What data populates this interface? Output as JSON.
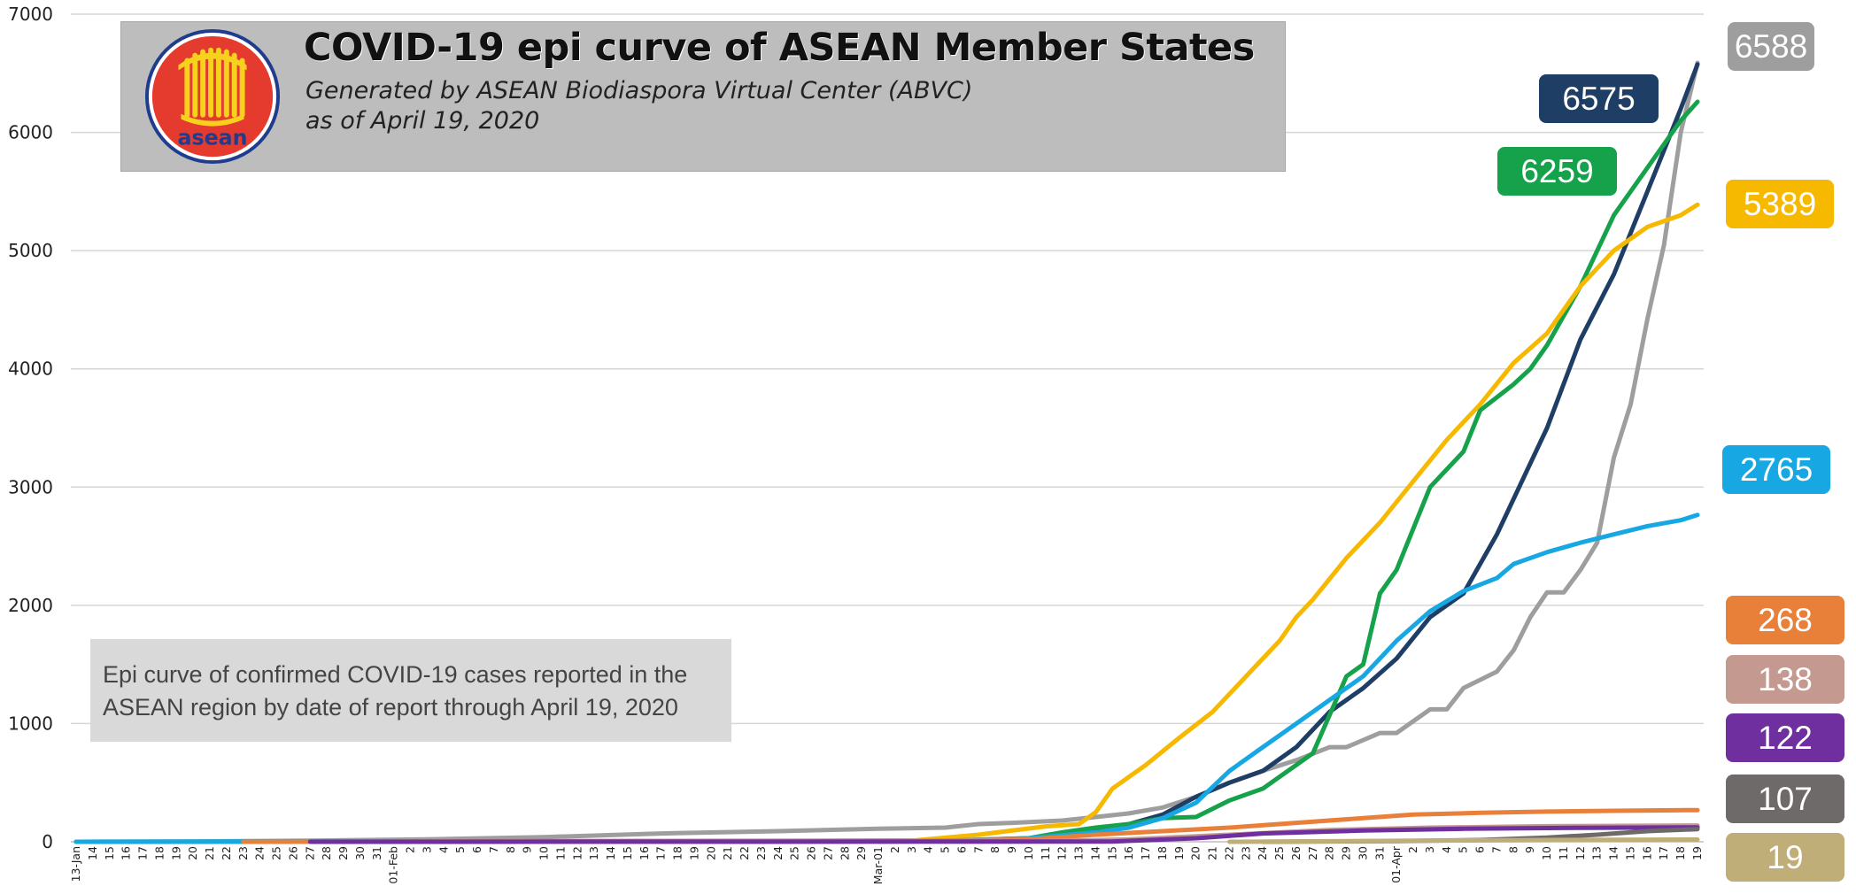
{
  "header": {
    "title": "COVID-19 epi curve of ASEAN Member States",
    "subtitle": "Generated by ASEAN Biodiaspora Virtual Center (ABVC)",
    "date_line": "as of April 19, 2020",
    "logo_text": "asean"
  },
  "note": {
    "line1": "Epi curve of confirmed COVID-19 cases reported in the",
    "line2": "ASEAN region by date of report  through April 19, 2020"
  },
  "chart_data": {
    "type": "line",
    "title": "COVID-19 epi curve of ASEAN Member States",
    "xlabel": "",
    "ylabel": "",
    "ylim": [
      0,
      7000
    ],
    "yticks": [
      0,
      1000,
      2000,
      3000,
      4000,
      5000,
      6000,
      7000
    ],
    "x_start": "2020-01-13",
    "x_end": "2020-04-19",
    "grid": true,
    "legend": "none",
    "end_labels": [
      {
        "text": "6588",
        "color": "#9e9e9e"
      },
      {
        "text": "6575",
        "color": "#1f3e66"
      },
      {
        "text": "6259",
        "color": "#16a24a"
      },
      {
        "text": "5389",
        "color": "#f7b800"
      },
      {
        "text": "2765",
        "color": "#17a8e3"
      },
      {
        "text": "268",
        "color": "#e8803a"
      },
      {
        "text": "138",
        "color": "#c49a90"
      },
      {
        "text": "122",
        "color": "#6f2f9f"
      },
      {
        "text": "107",
        "color": "#6e6a6a"
      },
      {
        "text": "19",
        "color": "#bfae78"
      }
    ],
    "series": [
      {
        "color": "#9e9e9e",
        "points": [
          [
            "2020-01-13",
            0
          ],
          [
            "2020-01-20",
            2
          ],
          [
            "2020-01-27",
            10
          ],
          [
            "2020-02-03",
            20
          ],
          [
            "2020-02-10",
            40
          ],
          [
            "2020-02-17",
            70
          ],
          [
            "2020-02-24",
            90
          ],
          [
            "2020-03-01",
            110
          ],
          [
            "2020-03-05",
            120
          ],
          [
            "2020-03-07",
            150
          ],
          [
            "2020-03-09",
            160
          ],
          [
            "2020-03-12",
            180
          ],
          [
            "2020-03-14",
            210
          ],
          [
            "2020-03-16",
            240
          ],
          [
            "2020-03-18",
            290
          ],
          [
            "2020-03-20",
            380
          ],
          [
            "2020-03-22",
            500
          ],
          [
            "2020-03-24",
            600
          ],
          [
            "2020-03-26",
            690
          ],
          [
            "2020-03-28",
            800
          ],
          [
            "2020-03-29",
            800
          ],
          [
            "2020-03-31",
            920
          ],
          [
            "2020-04-01",
            920
          ],
          [
            "2020-04-03",
            1120
          ],
          [
            "2020-04-04",
            1120
          ],
          [
            "2020-04-05",
            1300
          ],
          [
            "2020-04-07",
            1440
          ],
          [
            "2020-04-08",
            1620
          ],
          [
            "2020-04-09",
            1900
          ],
          [
            "2020-04-10",
            2110
          ],
          [
            "2020-04-11",
            2110
          ],
          [
            "2020-04-12",
            2300
          ],
          [
            "2020-04-13",
            2530
          ],
          [
            "2020-04-14",
            3250
          ],
          [
            "2020-04-15",
            3700
          ],
          [
            "2020-04-16",
            4420
          ],
          [
            "2020-04-17",
            5050
          ],
          [
            "2020-04-18",
            6000
          ],
          [
            "2020-04-19",
            6588
          ]
        ]
      },
      {
        "color": "#1f3e66",
        "points": [
          [
            "2020-03-01",
            2
          ],
          [
            "2020-03-05",
            5
          ],
          [
            "2020-03-08",
            10
          ],
          [
            "2020-03-10",
            20
          ],
          [
            "2020-03-12",
            50
          ],
          [
            "2020-03-14",
            100
          ],
          [
            "2020-03-16",
            150
          ],
          [
            "2020-03-18",
            230
          ],
          [
            "2020-03-20",
            380
          ],
          [
            "2020-03-22",
            500
          ],
          [
            "2020-03-24",
            600
          ],
          [
            "2020-03-26",
            800
          ],
          [
            "2020-03-28",
            1100
          ],
          [
            "2020-03-30",
            1300
          ],
          [
            "2020-04-01",
            1550
          ],
          [
            "2020-04-03",
            1900
          ],
          [
            "2020-04-05",
            2100
          ],
          [
            "2020-04-07",
            2600
          ],
          [
            "2020-04-09",
            3200
          ],
          [
            "2020-04-10",
            3500
          ],
          [
            "2020-04-12",
            4250
          ],
          [
            "2020-04-14",
            4800
          ],
          [
            "2020-04-16",
            5500
          ],
          [
            "2020-04-18",
            6200
          ],
          [
            "2020-04-19",
            6575
          ]
        ]
      },
      {
        "color": "#16a24a",
        "points": [
          [
            "2020-01-13",
            0
          ],
          [
            "2020-01-25",
            1
          ],
          [
            "2020-02-15",
            5
          ],
          [
            "2020-03-05",
            10
          ],
          [
            "2020-03-10",
            30
          ],
          [
            "2020-03-12",
            80
          ],
          [
            "2020-03-14",
            120
          ],
          [
            "2020-03-16",
            150
          ],
          [
            "2020-03-18",
            200
          ],
          [
            "2020-03-20",
            210
          ],
          [
            "2020-03-22",
            350
          ],
          [
            "2020-03-24",
            450
          ],
          [
            "2020-03-26",
            650
          ],
          [
            "2020-03-27",
            750
          ],
          [
            "2020-03-29",
            1400
          ],
          [
            "2020-03-30",
            1500
          ],
          [
            "2020-03-31",
            2100
          ],
          [
            "2020-04-01",
            2300
          ],
          [
            "2020-04-03",
            3000
          ],
          [
            "2020-04-05",
            3300
          ],
          [
            "2020-04-06",
            3650
          ],
          [
            "2020-04-08",
            3870
          ],
          [
            "2020-04-09",
            4000
          ],
          [
            "2020-04-10",
            4200
          ],
          [
            "2020-04-12",
            4700
          ],
          [
            "2020-04-14",
            5300
          ],
          [
            "2020-04-16",
            5700
          ],
          [
            "2020-04-18",
            6100
          ],
          [
            "2020-04-19",
            6259
          ]
        ]
      },
      {
        "color": "#f7b800",
        "points": [
          [
            "2020-01-26",
            0
          ],
          [
            "2020-01-28",
            2
          ],
          [
            "2020-02-28",
            2
          ],
          [
            "2020-03-03",
            10
          ],
          [
            "2020-03-07",
            60
          ],
          [
            "2020-03-11",
            130
          ],
          [
            "2020-03-13",
            150
          ],
          [
            "2020-03-14",
            250
          ],
          [
            "2020-03-15",
            450
          ],
          [
            "2020-03-17",
            650
          ],
          [
            "2020-03-19",
            880
          ],
          [
            "2020-03-21",
            1100
          ],
          [
            "2020-03-23",
            1400
          ],
          [
            "2020-03-25",
            1700
          ],
          [
            "2020-03-26",
            1900
          ],
          [
            "2020-03-27",
            2050
          ],
          [
            "2020-03-29",
            2400
          ],
          [
            "2020-03-31",
            2700
          ],
          [
            "2020-04-02",
            3050
          ],
          [
            "2020-04-04",
            3400
          ],
          [
            "2020-04-06",
            3700
          ],
          [
            "2020-04-08",
            4050
          ],
          [
            "2020-04-10",
            4300
          ],
          [
            "2020-04-12",
            4700
          ],
          [
            "2020-04-14",
            5000
          ],
          [
            "2020-04-16",
            5200
          ],
          [
            "2020-04-18",
            5300
          ],
          [
            "2020-04-19",
            5389
          ]
        ]
      },
      {
        "color": "#17a8e3",
        "points": [
          [
            "2020-01-13",
            0
          ],
          [
            "2020-01-25",
            3
          ],
          [
            "2020-02-15",
            5
          ],
          [
            "2020-03-05",
            8
          ],
          [
            "2020-03-10",
            30
          ],
          [
            "2020-03-14",
            80
          ],
          [
            "2020-03-16",
            120
          ],
          [
            "2020-03-18",
            200
          ],
          [
            "2020-03-20",
            330
          ],
          [
            "2020-03-22",
            600
          ],
          [
            "2020-03-24",
            800
          ],
          [
            "2020-03-26",
            1000
          ],
          [
            "2020-03-28",
            1200
          ],
          [
            "2020-03-30",
            1400
          ],
          [
            "2020-04-01",
            1700
          ],
          [
            "2020-04-03",
            1950
          ],
          [
            "2020-04-05",
            2120
          ],
          [
            "2020-04-07",
            2230
          ],
          [
            "2020-04-08",
            2350
          ],
          [
            "2020-04-10",
            2450
          ],
          [
            "2020-04-12",
            2530
          ],
          [
            "2020-04-14",
            2600
          ],
          [
            "2020-04-16",
            2670
          ],
          [
            "2020-04-18",
            2720
          ],
          [
            "2020-04-19",
            2765
          ]
        ]
      },
      {
        "color": "#e8803a",
        "points": [
          [
            "2020-01-23",
            0
          ],
          [
            "2020-01-30",
            2
          ],
          [
            "2020-03-01",
            3
          ],
          [
            "2020-03-10",
            20
          ],
          [
            "2020-03-14",
            60
          ],
          [
            "2020-03-18",
            90
          ],
          [
            "2020-03-22",
            120
          ],
          [
            "2020-03-26",
            160
          ],
          [
            "2020-03-30",
            200
          ],
          [
            "2020-04-02",
            230
          ],
          [
            "2020-04-06",
            245
          ],
          [
            "2020-04-10",
            255
          ],
          [
            "2020-04-14",
            262
          ],
          [
            "2020-04-19",
            268
          ]
        ]
      },
      {
        "color": "#c49a90",
        "points": [
          [
            "2020-01-30",
            0
          ],
          [
            "2020-03-10",
            2
          ],
          [
            "2020-03-16",
            20
          ],
          [
            "2020-03-22",
            60
          ],
          [
            "2020-03-28",
            100
          ],
          [
            "2020-04-03",
            120
          ],
          [
            "2020-04-10",
            132
          ],
          [
            "2020-04-19",
            138
          ]
        ]
      },
      {
        "color": "#6f2f9f",
        "points": [
          [
            "2020-01-27",
            0
          ],
          [
            "2020-03-15",
            2
          ],
          [
            "2020-03-20",
            30
          ],
          [
            "2020-03-24",
            70
          ],
          [
            "2020-03-30",
            95
          ],
          [
            "2020-04-05",
            110
          ],
          [
            "2020-04-12",
            118
          ],
          [
            "2020-04-19",
            122
          ]
        ]
      },
      {
        "color": "#6e6a6a",
        "points": [
          [
            "2020-03-24",
            0
          ],
          [
            "2020-04-01",
            5
          ],
          [
            "2020-04-06",
            15
          ],
          [
            "2020-04-10",
            35
          ],
          [
            "2020-04-13",
            60
          ],
          [
            "2020-04-16",
            90
          ],
          [
            "2020-04-19",
            107
          ]
        ]
      },
      {
        "color": "#bfae78",
        "points": [
          [
            "2020-03-22",
            0
          ],
          [
            "2020-04-01",
            8
          ],
          [
            "2020-04-10",
            15
          ],
          [
            "2020-04-19",
            19
          ]
        ]
      }
    ],
    "x_tick_labels": [
      "13-Jan",
      "14",
      "15",
      "16",
      "17",
      "18",
      "19",
      "20",
      "21",
      "22",
      "23",
      "24",
      "25",
      "26",
      "27",
      "28",
      "29",
      "30",
      "31",
      "01-Feb",
      "2",
      "3",
      "4",
      "5",
      "6",
      "7",
      "8",
      "9",
      "10",
      "11",
      "12",
      "13",
      "14",
      "15",
      "16",
      "17",
      "18",
      "19",
      "20",
      "21",
      "22",
      "23",
      "24",
      "25",
      "26",
      "27",
      "28",
      "29",
      "Mar-01",
      "2",
      "3",
      "4",
      "5",
      "6",
      "7",
      "8",
      "9",
      "10",
      "11",
      "12",
      "13",
      "14",
      "15",
      "16",
      "17",
      "18",
      "19",
      "20",
      "21",
      "22",
      "23",
      "24",
      "25",
      "26",
      "27",
      "28",
      "29",
      "30",
      "31",
      "01-Apr",
      "2",
      "3",
      "4",
      "5",
      "6",
      "7",
      "8",
      "9",
      "10",
      "11",
      "12",
      "13",
      "14",
      "15",
      "16",
      "17",
      "18",
      "19"
    ]
  }
}
